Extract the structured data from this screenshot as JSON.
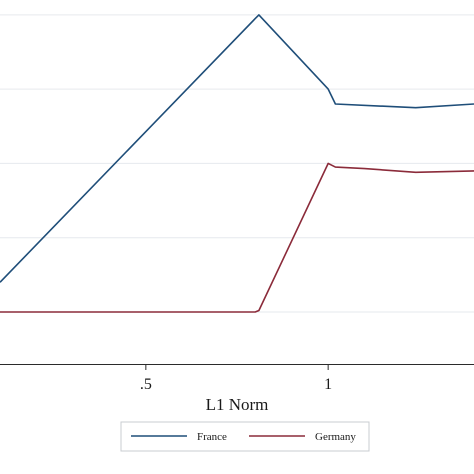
{
  "chart_data": {
    "type": "line",
    "xlabel": "L1 Norm",
    "ylabel": "",
    "x_ticks": [
      {
        "value": 0.5,
        "label": ".5"
      },
      {
        "value": 1.0,
        "label": "1"
      }
    ],
    "xlim": [
      0.1,
      1.4
    ],
    "ylim": [
      -0.07,
      0.42
    ],
    "y_gridlines": [
      0,
      0.1,
      0.2,
      0.3,
      0.4
    ],
    "grid": "horizontal",
    "legend_position": "bottom",
    "series": [
      {
        "name": "France",
        "color": "#1f4e79",
        "x": [
          0.1,
          0.8,
          0.81,
          1.0,
          1.02,
          1.24,
          1.4
        ],
        "y": [
          0.04,
          0.395,
          0.4,
          0.3,
          0.28,
          0.275,
          0.28
        ]
      },
      {
        "name": "Germany",
        "color": "#8b2b3a",
        "x": [
          0.1,
          0.8,
          0.81,
          1.0,
          1.02,
          1.1,
          1.24,
          1.4
        ],
        "y": [
          0.0,
          0.0,
          0.002,
          0.2,
          0.195,
          0.193,
          0.188,
          0.19
        ]
      }
    ]
  }
}
